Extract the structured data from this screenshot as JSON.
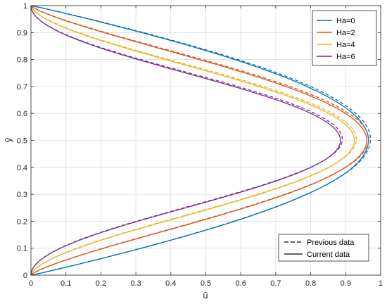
{
  "chart_data": {
    "type": "line",
    "title": "",
    "xlabel": "ū",
    "ylabel": "ȳ",
    "xlim": [
      0,
      1
    ],
    "ylim": [
      0,
      1
    ],
    "xticks": [
      "0",
      "0.1",
      "0.2",
      "0.3",
      "0.4",
      "0.5",
      "0.6",
      "0.7",
      "0.8",
      "0.9",
      "1"
    ],
    "yticks": [
      "0",
      "0.1",
      "0.2",
      "0.3",
      "0.4",
      "0.5",
      "0.6",
      "0.7",
      "0.8",
      "0.9",
      "1"
    ],
    "grid": true,
    "series": [
      {
        "name": "Ha=0",
        "color": "#0072BD",
        "peak_u": 0.965
      },
      {
        "name": "Ha=2",
        "color": "#D95319",
        "peak_u": 0.96
      },
      {
        "name": "Ha=4",
        "color": "#EDB120",
        "peak_u": 0.925
      },
      {
        "name": "Ha=6",
        "color": "#7E2F8E",
        "peak_u": 0.885
      }
    ],
    "legend_series_position": "top-right",
    "line_style_legend": [
      {
        "label": "Previous data",
        "style": "dashed",
        "color": "#000000"
      },
      {
        "label": "Current data",
        "style": "solid",
        "color": "#000000"
      }
    ],
    "line_style_legend_position": "bottom-right"
  }
}
